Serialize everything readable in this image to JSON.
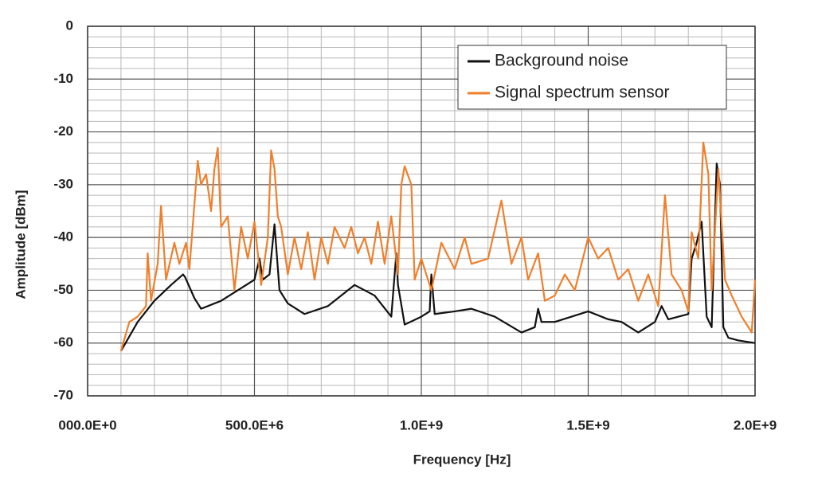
{
  "chart_data": {
    "type": "line",
    "xlabel": "Frequency [Hz]",
    "ylabel": "Amplitude [dBm]",
    "xlim": [
      0,
      2000000000
    ],
    "ylim": [
      -70,
      0
    ],
    "xticks": [
      {
        "value": 0,
        "label": "000.0E+0"
      },
      {
        "value": 500000000,
        "label": "500.0E+6"
      },
      {
        "value": 1000000000,
        "label": "1.0E+9"
      },
      {
        "value": 1500000000,
        "label": "1.5E+9"
      },
      {
        "value": 2000000000,
        "label": "2.0E+9"
      }
    ],
    "yticks": [
      0,
      -10,
      -20,
      -30,
      -40,
      -50,
      -60,
      -70
    ],
    "grid": true,
    "minor_grid_divisions": {
      "x": 5,
      "y": 5
    },
    "legend": "upper right",
    "series": [
      {
        "name": "Background noise",
        "color": "#111111",
        "x": [
          100000000,
          150000000,
          200000000,
          250000000,
          286000000,
          292000000,
          320000000,
          340000000,
          400000000,
          450000000,
          500000000,
          515000000,
          525000000,
          545000000,
          560000000,
          575000000,
          600000000,
          650000000,
          720000000,
          800000000,
          860000000,
          910000000,
          925000000,
          930000000,
          950000000,
          1000000000,
          1025000000,
          1030000000,
          1040000000,
          1100000000,
          1150000000,
          1220000000,
          1300000000,
          1340000000,
          1350000000,
          1360000000,
          1400000000,
          1500000000,
          1560000000,
          1600000000,
          1650000000,
          1700000000,
          1720000000,
          1740000000,
          1800000000,
          1810000000,
          1825000000,
          1840000000,
          1855000000,
          1870000000,
          1885000000,
          1895000000,
          1905000000,
          1920000000,
          1950000000,
          2000000000
        ],
        "values": [
          -61.5,
          -56,
          -52,
          -49,
          -47,
          -47.5,
          -51.5,
          -53.5,
          -52,
          -50,
          -48,
          -44,
          -48,
          -47,
          -37.5,
          -50,
          -52.5,
          -54.5,
          -53,
          -49,
          -51,
          -55,
          -43,
          -49,
          -56.5,
          -55,
          -54,
          -47,
          -54.5,
          -54,
          -53.5,
          -55,
          -58,
          -57,
          -53.5,
          -56,
          -56,
          -54,
          -55.5,
          -56,
          -58,
          -56,
          -53,
          -55.5,
          -54.5,
          -44,
          -41,
          -37,
          -55,
          -57,
          -26,
          -30,
          -57,
          -59,
          -59.5,
          -60
        ]
      },
      {
        "name": "Signal spectrum sensor",
        "color": "#f07f2b",
        "x": [
          100000000,
          125000000,
          150000000,
          175000000,
          180000000,
          190000000,
          210000000,
          220000000,
          235000000,
          260000000,
          275000000,
          295000000,
          305000000,
          330000000,
          340000000,
          355000000,
          370000000,
          380000000,
          390000000,
          400000000,
          420000000,
          440000000,
          460000000,
          480000000,
          500000000,
          520000000,
          540000000,
          550000000,
          560000000,
          570000000,
          580000000,
          600000000,
          620000000,
          640000000,
          660000000,
          680000000,
          700000000,
          720000000,
          740000000,
          770000000,
          790000000,
          810000000,
          830000000,
          850000000,
          870000000,
          890000000,
          910000000,
          930000000,
          940000000,
          950000000,
          970000000,
          980000000,
          1000000000,
          1030000000,
          1060000000,
          1100000000,
          1130000000,
          1150000000,
          1200000000,
          1240000000,
          1270000000,
          1300000000,
          1320000000,
          1350000000,
          1370000000,
          1400000000,
          1430000000,
          1460000000,
          1500000000,
          1530000000,
          1560000000,
          1590000000,
          1620000000,
          1650000000,
          1680000000,
          1710000000,
          1730000000,
          1750000000,
          1780000000,
          1800000000,
          1810000000,
          1830000000,
          1845000000,
          1860000000,
          1870000000,
          1890000000,
          1910000000,
          1930000000,
          1960000000,
          1990000000,
          2000000000
        ],
        "values": [
          -61.5,
          -56,
          -55,
          -53,
          -43,
          -52,
          -45,
          -34,
          -48,
          -41,
          -45,
          -41,
          -46,
          -25.5,
          -30,
          -28,
          -35,
          -27,
          -23,
          -38,
          -36,
          -50,
          -38,
          -44,
          -37,
          -49,
          -40,
          -23.5,
          -27,
          -36,
          -38,
          -47,
          -40,
          -46,
          -39,
          -48,
          -40,
          -45,
          -38,
          -42,
          -38,
          -43,
          -40,
          -45,
          -37,
          -45,
          -36,
          -47,
          -30,
          -26.5,
          -30,
          -48,
          -44,
          -50,
          -41,
          -46,
          -40,
          -45,
          -44,
          -33,
          -45,
          -40,
          -48,
          -43,
          -52,
          -51,
          -47,
          -50,
          -40,
          -44,
          -42,
          -48,
          -46,
          -52,
          -47,
          -53,
          -32,
          -47,
          -50,
          -54,
          -39,
          -44,
          -22,
          -28,
          -50,
          -27,
          -48,
          -51,
          -55,
          -58,
          -48
        ]
      }
    ]
  }
}
